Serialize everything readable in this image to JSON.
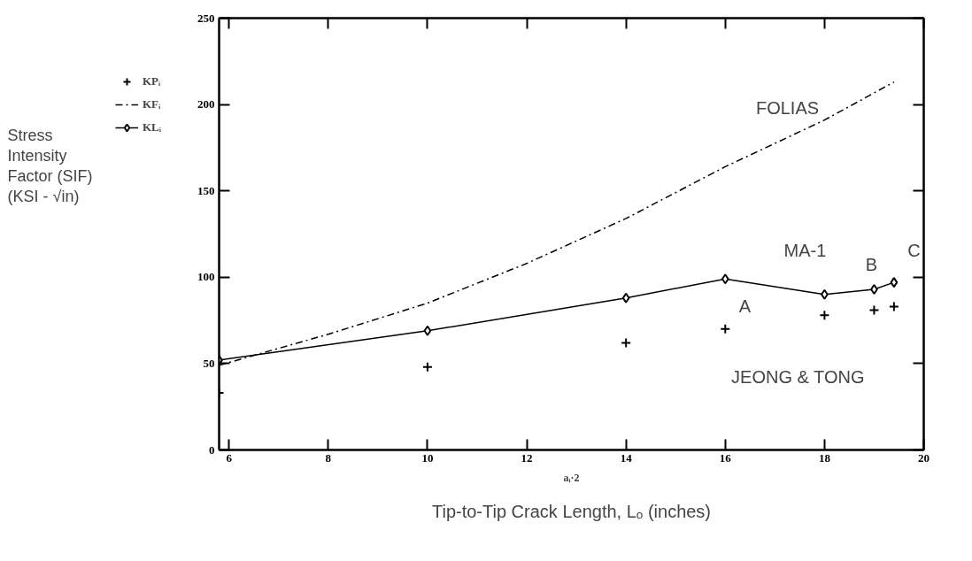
{
  "chart_data": {
    "type": "line",
    "xlabel": "aᵢ·2",
    "xlim": [
      5.8,
      20
    ],
    "xticks": [
      6,
      8,
      10,
      12,
      14,
      16,
      18,
      20
    ],
    "ylim": [
      0,
      250
    ],
    "yticks": [
      0,
      50,
      100,
      150,
      200,
      250
    ],
    "grid": false,
    "legend": "left",
    "series": [
      {
        "name": "KPᵢ",
        "type": "scatter",
        "marker": "cross",
        "color": "#000000",
        "x": [
          5.8,
          10,
          14,
          16,
          18,
          19,
          19.4
        ],
        "values": [
          33,
          48,
          62,
          70,
          78,
          81,
          83
        ]
      },
      {
        "name": "KFᵢ",
        "marker": "none",
        "line_style": "dashdot",
        "color": "#000000",
        "x": [
          5.8,
          8,
          10,
          12,
          14,
          16,
          18,
          19.4
        ],
        "values": [
          49,
          67,
          85,
          108,
          134,
          164,
          191,
          213
        ]
      },
      {
        "name": "KLᵢ",
        "marker": "diamond",
        "line_style": "solid",
        "color": "#000000",
        "x": [
          5.8,
          10,
          14,
          16,
          18,
          19,
          19.4
        ],
        "values": [
          52,
          69,
          88,
          99,
          90,
          93,
          97
        ]
      }
    ],
    "annotations": [
      "FOLIAS",
      "MA-1",
      "A",
      "B",
      "C",
      "JEONG & TONG",
      "Tip-to-Tip Crack Length, Lₒ (inches)",
      "Stress\nIntensity\nFactor (SIF)\n(KSI - √in)"
    ]
  }
}
